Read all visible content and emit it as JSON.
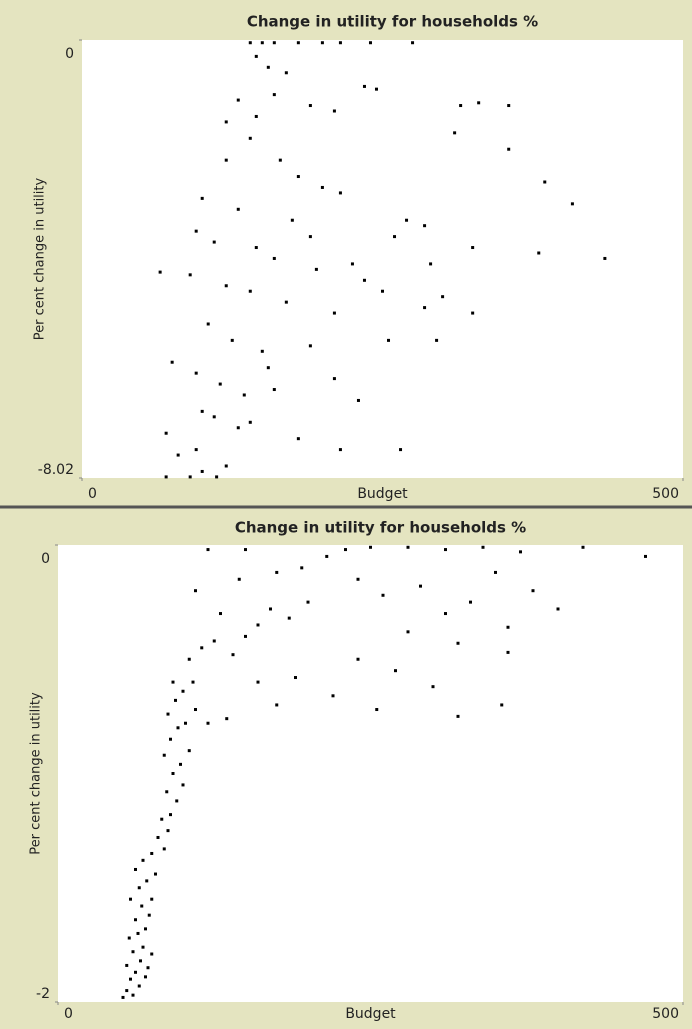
{
  "chart_data": [
    {
      "type": "scatter",
      "title": "Change in utility for households %",
      "xlabel": "Budget",
      "ylabel": "Per cent change in utility",
      "color": "#000000",
      "xlim": [
        0,
        500
      ],
      "ylim": [
        -8.02,
        0
      ],
      "xticks": [
        0,
        500
      ],
      "yticks": [
        -8.02,
        0
      ],
      "x": [
        140,
        150,
        160,
        180,
        200,
        215,
        240,
        275,
        145,
        155,
        170,
        130,
        160,
        190,
        210,
        235,
        245,
        315,
        330,
        355,
        310,
        355,
        120,
        140,
        165,
        180,
        200,
        215,
        100,
        130,
        175,
        270,
        285,
        408,
        95,
        110,
        145,
        160,
        195,
        225,
        235,
        260,
        290,
        325,
        380,
        435,
        65,
        90,
        120,
        140,
        170,
        210,
        250,
        285,
        300,
        325,
        105,
        125,
        150,
        190,
        255,
        295,
        75,
        95,
        115,
        135,
        160,
        230,
        110,
        130,
        180,
        215,
        265,
        70,
        80,
        95,
        120,
        100,
        70,
        90,
        112,
        140,
        155,
        100,
        120,
        145,
        190,
        210,
        385
      ],
      "values": [
        -0.05,
        -0.05,
        -0.05,
        -0.05,
        -0.05,
        -0.05,
        -0.05,
        -0.05,
        -0.3,
        -0.5,
        -0.6,
        -1.1,
        -1.0,
        -1.2,
        -1.3,
        -0.85,
        -0.9,
        -1.2,
        -1.15,
        -1.2,
        -1.7,
        -2.0,
        -1.5,
        -1.8,
        -2.2,
        -2.5,
        -2.7,
        -2.8,
        -2.9,
        -3.1,
        -3.3,
        -3.3,
        -3.4,
        -3.0,
        -3.5,
        -3.7,
        -3.8,
        -4.0,
        -4.2,
        -4.1,
        -4.4,
        -3.6,
        -4.1,
        -3.8,
        -3.9,
        -4.0,
        -4.25,
        -4.3,
        -4.5,
        -4.6,
        -4.8,
        -5.0,
        -4.6,
        -4.9,
        -4.7,
        -5.0,
        -5.2,
        -5.5,
        -5.7,
        -5.6,
        -5.5,
        -5.5,
        -5.9,
        -6.1,
        -6.3,
        -6.5,
        -6.4,
        -6.6,
        -6.9,
        -7.1,
        -7.3,
        -7.5,
        -7.5,
        -7.2,
        -7.6,
        -7.5,
        -7.8,
        -7.9,
        -8.0,
        -8.0,
        -8.0,
        -7.0,
        -6.0,
        -6.8,
        -2.2,
        -1.4,
        -3.6,
        -6.2,
        -2.6
      ]
    },
    {
      "type": "scatter",
      "title": "Change in utility for households %",
      "xlabel": "Budget",
      "ylabel": "Per cent change in utility",
      "color": "#000000",
      "xlim": [
        0,
        500
      ],
      "ylim": [
        -2,
        0
      ],
      "xticks": [
        0,
        500
      ],
      "yticks": [
        -2,
        0
      ],
      "x": [
        52,
        55,
        60,
        65,
        58,
        62,
        70,
        55,
        66,
        72,
        60,
        68,
        75,
        57,
        64,
        70,
        62,
        73,
        67,
        58,
        75,
        65,
        71,
        62,
        78,
        68,
        75,
        85,
        80,
        88,
        83,
        90,
        95,
        87,
        100,
        92,
        98,
        85,
        105,
        90,
        96,
        102,
        88,
        110,
        94,
        100,
        92,
        108,
        120,
        135,
        105,
        115,
        125,
        140,
        150,
        160,
        130,
        170,
        185,
        200,
        110,
        145,
        175,
        195,
        215,
        230,
        250,
        280,
        310,
        340,
        370,
        420,
        470,
        150,
        120,
        240,
        260,
        290,
        310,
        330,
        350,
        360,
        380,
        400,
        360,
        320,
        280,
        270,
        300,
        240,
        220,
        190,
        160,
        320,
        355,
        175,
        255
      ],
      "values": [
        -1.98,
        -1.95,
        -1.97,
        -1.93,
        -1.9,
        -1.87,
        -1.89,
        -1.84,
        -1.82,
        -1.85,
        -1.78,
        -1.76,
        -1.79,
        -1.72,
        -1.7,
        -1.68,
        -1.64,
        -1.62,
        -1.58,
        -1.55,
        -1.55,
        -1.5,
        -1.47,
        -1.42,
        -1.44,
        -1.38,
        -1.35,
        -1.33,
        -1.28,
        -1.25,
        -1.2,
        -1.18,
        -1.12,
        -1.08,
        -1.05,
        -1.0,
        -0.96,
        -0.92,
        -0.9,
        -0.85,
        -0.8,
        -0.78,
        -0.74,
        -0.72,
        -0.68,
        -0.64,
        -0.6,
        -0.6,
        -0.78,
        -0.76,
        -0.5,
        -0.45,
        -0.42,
        -0.48,
        -0.4,
        -0.35,
        -0.3,
        -0.28,
        -0.32,
        -0.25,
        -0.2,
        -0.15,
        -0.12,
        -0.1,
        -0.05,
        -0.02,
        -0.01,
        -0.01,
        -0.02,
        -0.01,
        -0.03,
        -0.01,
        -0.05,
        -0.02,
        -0.02,
        -0.15,
        -0.22,
        -0.18,
        -0.3,
        -0.25,
        -0.12,
        -0.36,
        -0.2,
        -0.28,
        -0.47,
        -0.43,
        -0.38,
        -0.55,
        -0.62,
        -0.5,
        -0.66,
        -0.58,
        -0.6,
        -0.75,
        -0.7,
        -0.7,
        -0.72
      ]
    }
  ]
}
